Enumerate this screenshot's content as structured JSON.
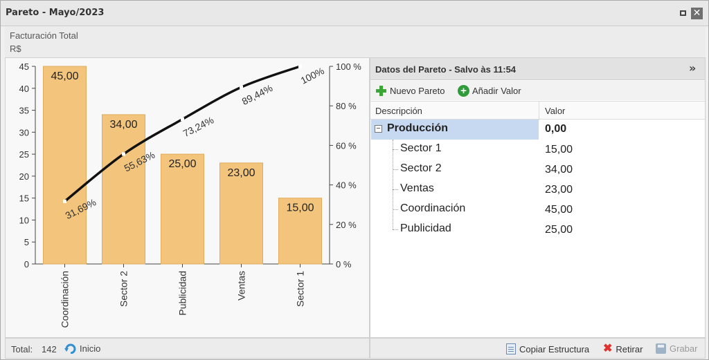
{
  "window": {
    "title": "Pareto - Mayo/2023"
  },
  "header": {
    "line1": "Facturación Total",
    "line2": "R$"
  },
  "chart_data": {
    "type": "bar",
    "categories": [
      "Coordinación",
      "Sector 2",
      "Publicidad",
      "Ventas",
      "Sector 1"
    ],
    "values": [
      45,
      34,
      25,
      23,
      15
    ],
    "value_labels": [
      "45,00",
      "34,00",
      "25,00",
      "23,00",
      "15,00"
    ],
    "cumulative_percent": [
      31.69,
      55.63,
      73.24,
      89.44,
      100
    ],
    "cumulative_labels": [
      "31,69%",
      "55,63%",
      "73,24%",
      "89,44%",
      "100%"
    ],
    "ylim": [
      0,
      45
    ],
    "y_ticks": [
      "0",
      "5",
      "10",
      "15",
      "20",
      "25",
      "30",
      "35",
      "40",
      "45"
    ],
    "y2lim": [
      0,
      100
    ],
    "y2_ticks": [
      "0 %",
      "20 %",
      "40 %",
      "60 %",
      "80 %",
      "100 %"
    ],
    "bar_color": "#f2c47c",
    "line_color": "#111111"
  },
  "footer_left": {
    "total_label": "Total:",
    "total_value": "142",
    "home_label": "Inicio"
  },
  "data_panel": {
    "title": "Datos del Pareto - Salvo às 11:54",
    "toolbar": {
      "new_label": "Nuevo Pareto",
      "add_label": "Añadir Valor"
    },
    "columns": {
      "desc": "Descripción",
      "value": "Valor"
    },
    "parent": {
      "name": "Producción",
      "value": "0,00"
    },
    "children": [
      {
        "name": "Sector 1",
        "value": "15,00"
      },
      {
        "name": "Sector 2",
        "value": "34,00"
      },
      {
        "name": "Ventas",
        "value": "23,00"
      },
      {
        "name": "Coordinación",
        "value": "45,00"
      },
      {
        "name": "Publicidad",
        "value": "25,00"
      }
    ]
  },
  "footer_right": {
    "copy_label": "Copiar Estructura",
    "remove_label": "Retirar",
    "save_label": "Grabar"
  }
}
